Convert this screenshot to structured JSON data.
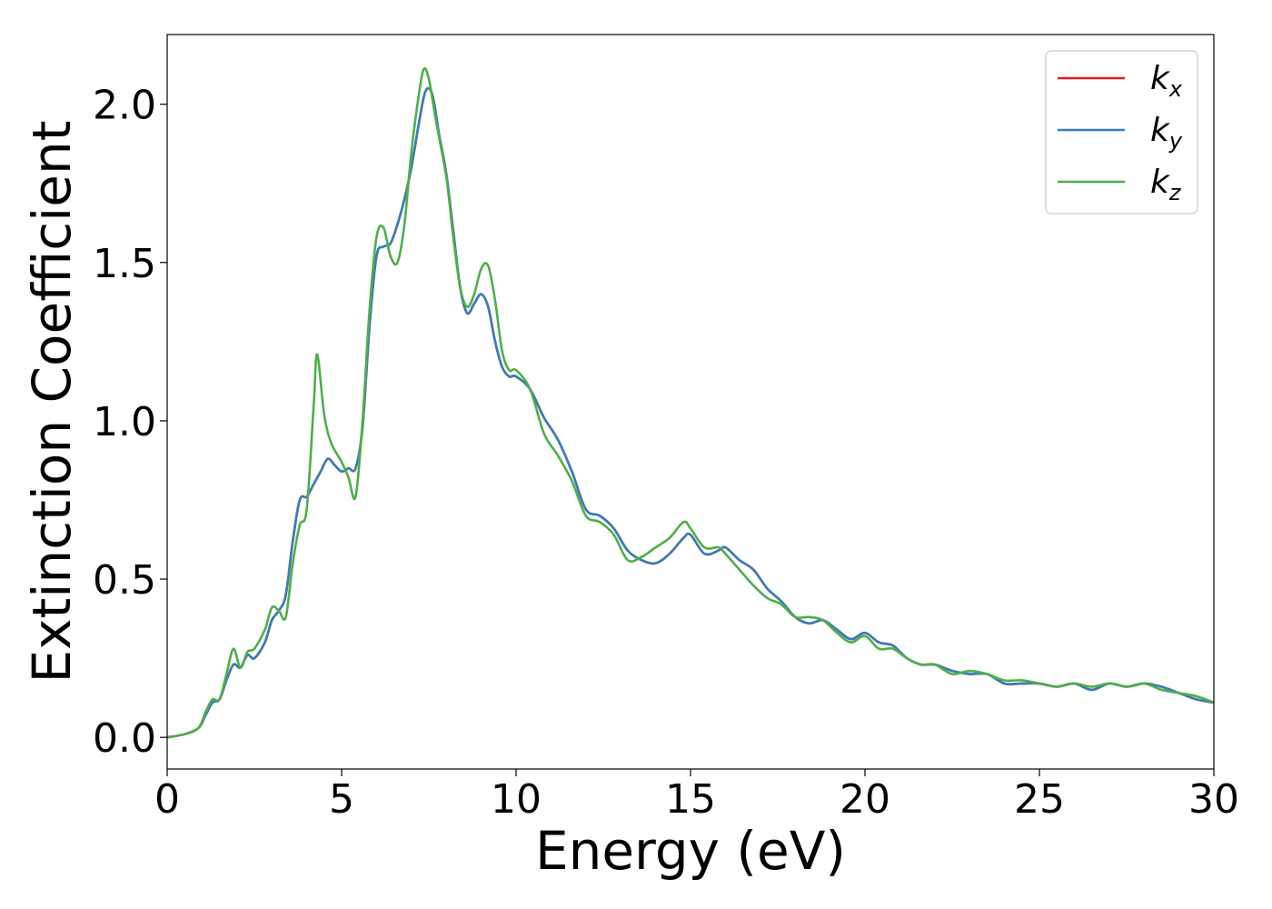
{
  "chart_data": {
    "type": "line",
    "title": "",
    "xlabel": "Energy (eV)",
    "ylabel": "Extinction Coefficient",
    "xlim": [
      0,
      30
    ],
    "ylim": [
      -0.1,
      2.22
    ],
    "xticks": [
      0,
      5,
      10,
      15,
      20,
      25,
      30
    ],
    "xtick_labels": [
      "0",
      "5",
      "10",
      "15",
      "20",
      "25",
      "30"
    ],
    "yticks": [
      0.0,
      0.5,
      1.0,
      1.5,
      2.0
    ],
    "ytick_labels": [
      "0.0",
      "0.5",
      "1.0",
      "1.5",
      "2.0"
    ],
    "grid": false,
    "legend_position": "top-right",
    "series": [
      {
        "name": "k_x",
        "label_main": "k",
        "label_sub": "x",
        "color": "#e41a1c",
        "x": [
          0,
          0.5,
          0.9,
          1.1,
          1.3,
          1.5,
          1.7,
          1.9,
          2.1,
          2.3,
          2.5,
          2.8,
          3.0,
          3.2,
          3.4,
          3.6,
          3.8,
          4.0,
          4.2,
          4.4,
          4.6,
          4.8,
          5.0,
          5.2,
          5.4,
          5.6,
          5.8,
          6.0,
          6.2,
          6.4,
          6.6,
          6.8,
          7.0,
          7.2,
          7.4,
          7.6,
          7.8,
          8.0,
          8.2,
          8.4,
          8.6,
          8.8,
          9.0,
          9.2,
          9.4,
          9.6,
          9.8,
          10.0,
          10.4,
          10.8,
          11.2,
          11.6,
          12.0,
          12.4,
          12.8,
          13.2,
          13.6,
          14.0,
          14.4,
          14.8,
          15.0,
          15.4,
          15.8,
          16.0,
          16.4,
          16.8,
          17.2,
          17.6,
          18.0,
          18.4,
          18.8,
          19.2,
          19.6,
          20.0,
          20.4,
          20.8,
          21.2,
          21.6,
          22.0,
          22.5,
          23.0,
          23.5,
          24.0,
          24.5,
          25.0,
          25.5,
          26.0,
          26.5,
          27.0,
          27.5,
          28.0,
          28.5,
          29.0,
          29.5,
          30.0
        ],
        "y": [
          0.0,
          0.01,
          0.03,
          0.07,
          0.11,
          0.12,
          0.18,
          0.23,
          0.22,
          0.26,
          0.25,
          0.3,
          0.37,
          0.4,
          0.45,
          0.62,
          0.75,
          0.76,
          0.8,
          0.84,
          0.88,
          0.86,
          0.84,
          0.85,
          0.85,
          0.98,
          1.3,
          1.52,
          1.55,
          1.56,
          1.62,
          1.7,
          1.8,
          1.93,
          2.04,
          2.03,
          1.9,
          1.78,
          1.6,
          1.42,
          1.34,
          1.37,
          1.4,
          1.36,
          1.25,
          1.17,
          1.14,
          1.14,
          1.1,
          1.01,
          0.94,
          0.84,
          0.72,
          0.7,
          0.66,
          0.59,
          0.56,
          0.55,
          0.58,
          0.63,
          0.64,
          0.58,
          0.59,
          0.6,
          0.56,
          0.53,
          0.47,
          0.43,
          0.38,
          0.36,
          0.37,
          0.34,
          0.31,
          0.33,
          0.3,
          0.29,
          0.25,
          0.23,
          0.23,
          0.21,
          0.2,
          0.2,
          0.17,
          0.17,
          0.17,
          0.16,
          0.17,
          0.15,
          0.17,
          0.16,
          0.17,
          0.16,
          0.14,
          0.12,
          0.11
        ]
      },
      {
        "name": "k_y",
        "label_main": "k",
        "label_sub": "y",
        "color": "#377eb8",
        "x": [
          0,
          0.5,
          0.9,
          1.1,
          1.3,
          1.5,
          1.7,
          1.9,
          2.1,
          2.3,
          2.5,
          2.8,
          3.0,
          3.2,
          3.4,
          3.6,
          3.8,
          4.0,
          4.2,
          4.4,
          4.6,
          4.8,
          5.0,
          5.2,
          5.4,
          5.6,
          5.8,
          6.0,
          6.2,
          6.4,
          6.6,
          6.8,
          7.0,
          7.2,
          7.4,
          7.6,
          7.8,
          8.0,
          8.2,
          8.4,
          8.6,
          8.8,
          9.0,
          9.2,
          9.4,
          9.6,
          9.8,
          10.0,
          10.4,
          10.8,
          11.2,
          11.6,
          12.0,
          12.4,
          12.8,
          13.2,
          13.6,
          14.0,
          14.4,
          14.8,
          15.0,
          15.4,
          15.8,
          16.0,
          16.4,
          16.8,
          17.2,
          17.6,
          18.0,
          18.4,
          18.8,
          19.2,
          19.6,
          20.0,
          20.4,
          20.8,
          21.2,
          21.6,
          22.0,
          22.5,
          23.0,
          23.5,
          24.0,
          24.5,
          25.0,
          25.5,
          26.0,
          26.5,
          27.0,
          27.5,
          28.0,
          28.5,
          29.0,
          29.5,
          30.0
        ],
        "y": [
          0.0,
          0.01,
          0.03,
          0.07,
          0.11,
          0.12,
          0.18,
          0.23,
          0.22,
          0.26,
          0.25,
          0.3,
          0.37,
          0.4,
          0.45,
          0.62,
          0.75,
          0.76,
          0.8,
          0.84,
          0.88,
          0.86,
          0.84,
          0.85,
          0.85,
          0.98,
          1.3,
          1.52,
          1.55,
          1.56,
          1.62,
          1.7,
          1.8,
          1.93,
          2.04,
          2.03,
          1.9,
          1.78,
          1.6,
          1.42,
          1.34,
          1.37,
          1.4,
          1.36,
          1.25,
          1.17,
          1.14,
          1.14,
          1.1,
          1.01,
          0.94,
          0.84,
          0.72,
          0.7,
          0.66,
          0.59,
          0.56,
          0.55,
          0.58,
          0.63,
          0.64,
          0.58,
          0.59,
          0.6,
          0.56,
          0.53,
          0.47,
          0.43,
          0.38,
          0.36,
          0.37,
          0.34,
          0.31,
          0.33,
          0.3,
          0.29,
          0.25,
          0.23,
          0.23,
          0.21,
          0.2,
          0.2,
          0.17,
          0.17,
          0.17,
          0.16,
          0.17,
          0.15,
          0.17,
          0.16,
          0.17,
          0.16,
          0.14,
          0.12,
          0.11
        ]
      },
      {
        "name": "k_z",
        "label_main": "k",
        "label_sub": "z",
        "color": "#4daf4a",
        "x": [
          0,
          0.5,
          0.9,
          1.1,
          1.3,
          1.5,
          1.7,
          1.9,
          2.1,
          2.3,
          2.5,
          2.8,
          3.0,
          3.2,
          3.4,
          3.6,
          3.8,
          4.0,
          4.2,
          4.3,
          4.5,
          4.7,
          5.0,
          5.2,
          5.4,
          5.6,
          5.8,
          6.0,
          6.2,
          6.4,
          6.6,
          6.8,
          7.0,
          7.2,
          7.35,
          7.5,
          7.7,
          8.0,
          8.2,
          8.4,
          8.6,
          8.8,
          9.0,
          9.2,
          9.4,
          9.6,
          9.8,
          10.0,
          10.4,
          10.8,
          11.2,
          11.6,
          12.0,
          12.4,
          12.8,
          13.2,
          13.6,
          14.0,
          14.4,
          14.8,
          15.0,
          15.4,
          15.8,
          16.0,
          16.4,
          16.8,
          17.2,
          17.6,
          18.0,
          18.4,
          18.8,
          19.2,
          19.6,
          20.0,
          20.4,
          20.8,
          21.2,
          21.6,
          22.0,
          22.5,
          23.0,
          23.5,
          24.0,
          24.5,
          25.0,
          25.5,
          26.0,
          26.5,
          27.0,
          27.5,
          28.0,
          28.5,
          29.0,
          29.5,
          30.0
        ],
        "y": [
          0.0,
          0.01,
          0.03,
          0.08,
          0.12,
          0.12,
          0.2,
          0.28,
          0.22,
          0.27,
          0.28,
          0.34,
          0.41,
          0.4,
          0.38,
          0.55,
          0.67,
          0.72,
          1.05,
          1.21,
          1.02,
          0.93,
          0.87,
          0.82,
          0.76,
          1.0,
          1.35,
          1.58,
          1.61,
          1.52,
          1.5,
          1.62,
          1.85,
          2.02,
          2.11,
          2.08,
          1.95,
          1.77,
          1.58,
          1.42,
          1.36,
          1.4,
          1.48,
          1.49,
          1.38,
          1.22,
          1.16,
          1.16,
          1.1,
          0.96,
          0.89,
          0.81,
          0.7,
          0.68,
          0.64,
          0.56,
          0.57,
          0.6,
          0.63,
          0.68,
          0.66,
          0.6,
          0.6,
          0.58,
          0.53,
          0.48,
          0.44,
          0.42,
          0.38,
          0.38,
          0.37,
          0.33,
          0.3,
          0.32,
          0.28,
          0.28,
          0.25,
          0.23,
          0.23,
          0.2,
          0.21,
          0.2,
          0.18,
          0.18,
          0.17,
          0.16,
          0.17,
          0.16,
          0.17,
          0.16,
          0.17,
          0.15,
          0.14,
          0.13,
          0.11
        ]
      }
    ]
  }
}
